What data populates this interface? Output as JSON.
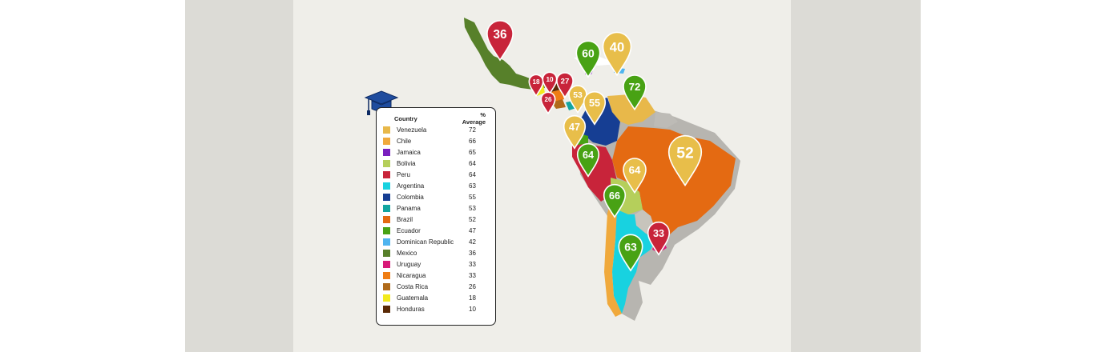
{
  "legend": {
    "header_country": "Country",
    "header_value": "% Average",
    "rows": [
      {
        "country": "Venezuela",
        "value": "72",
        "color": "#e8b84a"
      },
      {
        "country": "Chile",
        "value": "66",
        "color": "#f0a93c"
      },
      {
        "country": "Jamaica",
        "value": "65",
        "color": "#7a1fbf"
      },
      {
        "country": "Bolivia",
        "value": "64",
        "color": "#b5cf5b"
      },
      {
        "country": "Peru",
        "value": "64",
        "color": "#c8243a"
      },
      {
        "country": "Argentina",
        "value": "63",
        "color": "#18d2e0"
      },
      {
        "country": "Colombia",
        "value": "55",
        "color": "#163e93"
      },
      {
        "country": "Panama",
        "value": "53",
        "color": "#13a5a0"
      },
      {
        "country": "Brazil",
        "value": "52",
        "color": "#e46a12"
      },
      {
        "country": "Ecuador",
        "value": "47",
        "color": "#48a214"
      },
      {
        "country": "Dominican Republic",
        "value": "42",
        "color": "#4fb4ef"
      },
      {
        "country": "Mexico",
        "value": "36",
        "color": "#57802a"
      },
      {
        "country": "Uruguay",
        "value": "33",
        "color": "#d81a78"
      },
      {
        "country": "Nicaragua",
        "value": "33",
        "color": "#ef7d14"
      },
      {
        "country": "Costa Rica",
        "value": "26",
        "color": "#b06a1a"
      },
      {
        "country": "Guatemala",
        "value": "18",
        "color": "#f2ea1e"
      },
      {
        "country": "Honduras",
        "value": "10",
        "color": "#5a2a06"
      }
    ]
  },
  "markers": [
    {
      "label": "36",
      "color": "#c8243a"
    },
    {
      "label": "60",
      "color": "#48a214"
    },
    {
      "label": "40",
      "color": "#e8be4a"
    },
    {
      "label": "72",
      "color": "#48a214"
    },
    {
      "label": "18",
      "color": "#c8243a"
    },
    {
      "label": "10",
      "color": "#c8243a"
    },
    {
      "label": "27",
      "color": "#c8243a"
    },
    {
      "label": "26",
      "color": "#c8243a"
    },
    {
      "label": "53",
      "color": "#e8be4a"
    },
    {
      "label": "55",
      "color": "#e8be4a"
    },
    {
      "label": "47",
      "color": "#e8be4a"
    },
    {
      "label": "64",
      "color": "#48a214"
    },
    {
      "label": "52",
      "color": "#e8be4a"
    },
    {
      "label": "64",
      "color": "#e8be4a"
    },
    {
      "label": "66",
      "color": "#48a214"
    },
    {
      "label": "33",
      "color": "#c8243a"
    },
    {
      "label": "63",
      "color": "#48a214"
    }
  ]
}
